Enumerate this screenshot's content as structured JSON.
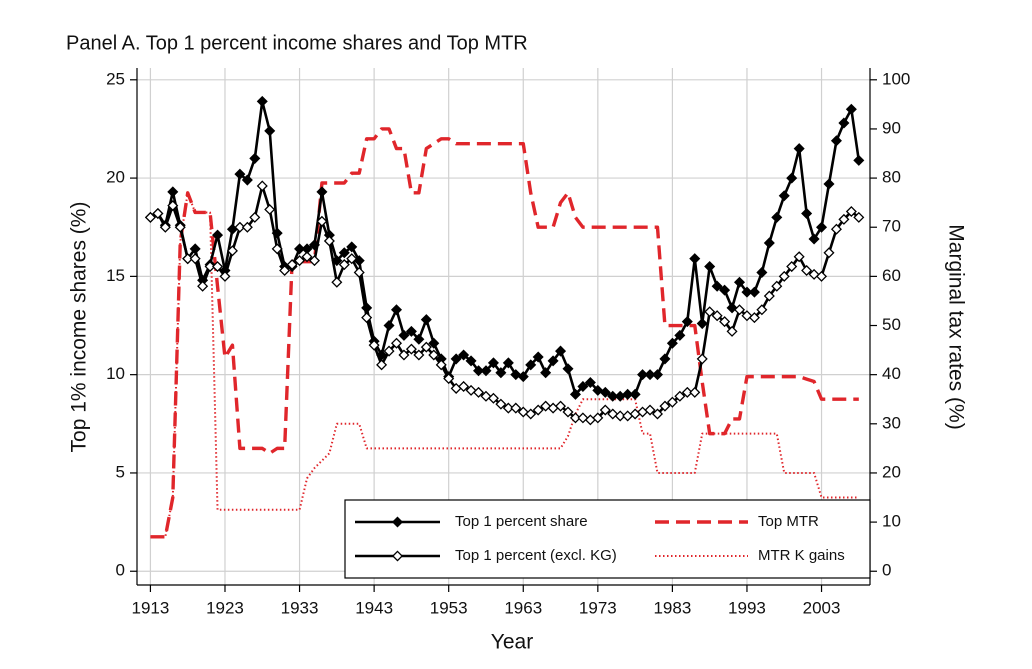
{
  "chart_data": {
    "type": "line",
    "title": "Panel A. Top 1 percent income shares and Top MTR",
    "xlabel": "Year",
    "ylabel": "Top 1% income shares (%)",
    "y2label": "Marginal tax rates (%)",
    "x": [
      1913,
      1914,
      1915,
      1916,
      1917,
      1918,
      1919,
      1920,
      1921,
      1922,
      1923,
      1924,
      1925,
      1926,
      1927,
      1928,
      1929,
      1930,
      1931,
      1932,
      1933,
      1934,
      1935,
      1936,
      1937,
      1938,
      1939,
      1940,
      1941,
      1942,
      1943,
      1944,
      1945,
      1946,
      1947,
      1948,
      1949,
      1950,
      1951,
      1952,
      1953,
      1954,
      1955,
      1956,
      1957,
      1958,
      1959,
      1960,
      1961,
      1962,
      1963,
      1964,
      1965,
      1966,
      1967,
      1968,
      1969,
      1970,
      1971,
      1972,
      1973,
      1974,
      1975,
      1976,
      1977,
      1978,
      1979,
      1980,
      1981,
      1982,
      1983,
      1984,
      1985,
      1986,
      1987,
      1988,
      1989,
      1990,
      1991,
      1992,
      1993,
      1994,
      1995,
      1996,
      1997,
      1998,
      1999,
      2000,
      2001,
      2002,
      2003,
      2004,
      2005,
      2006,
      2007,
      2008
    ],
    "series": [
      {
        "name": "Top 1 percent share",
        "color": "#000000",
        "dash": "solid",
        "marker": "diamond-filled",
        "axis": "y",
        "values": [
          18.0,
          18.2,
          17.6,
          19.3,
          17.6,
          15.9,
          16.4,
          14.8,
          15.6,
          17.1,
          15.3,
          17.4,
          20.2,
          19.9,
          21.0,
          23.9,
          22.4,
          17.2,
          15.5,
          15.5,
          16.4,
          16.4,
          16.6,
          19.3,
          17.1,
          15.8,
          16.2,
          16.5,
          15.8,
          13.4,
          11.7,
          11.0,
          12.5,
          13.3,
          12.0,
          12.2,
          11.8,
          12.8,
          11.6,
          10.8,
          9.9,
          10.8,
          11.0,
          10.7,
          10.2,
          10.2,
          10.6,
          10.1,
          10.6,
          10.0,
          9.9,
          10.5,
          10.9,
          10.1,
          10.7,
          11.2,
          10.3,
          9.0,
          9.4,
          9.6,
          9.2,
          9.1,
          8.9,
          8.9,
          9.0,
          9.0,
          10.0,
          10.0,
          10.0,
          10.8,
          11.6,
          12.0,
          12.7,
          15.9,
          12.6,
          15.5,
          14.5,
          14.3,
          13.4,
          14.7,
          14.2,
          14.2,
          15.2,
          16.7,
          18.0,
          19.1,
          20.0,
          21.5,
          18.2,
          16.9,
          17.5,
          19.7,
          21.9,
          22.8,
          23.5,
          20.9
        ]
      },
      {
        "name": "Top 1 percent (excl. KG)",
        "color": "#000000",
        "dash": "solid",
        "marker": "diamond-open",
        "axis": "y",
        "values": [
          18.0,
          18.2,
          17.5,
          18.6,
          17.5,
          15.9,
          15.9,
          14.5,
          15.5,
          15.5,
          15.0,
          16.3,
          17.5,
          17.5,
          18.0,
          19.6,
          18.4,
          16.4,
          15.3,
          15.6,
          15.8,
          16.0,
          15.8,
          17.8,
          16.8,
          14.7,
          15.6,
          15.9,
          15.2,
          12.9,
          11.5,
          10.5,
          11.2,
          11.6,
          11.0,
          11.3,
          11.0,
          11.4,
          11.0,
          10.5,
          9.8,
          9.3,
          9.4,
          9.2,
          9.1,
          8.9,
          8.8,
          8.5,
          8.3,
          8.3,
          8.1,
          8.0,
          8.2,
          8.4,
          8.3,
          8.4,
          8.1,
          7.8,
          7.8,
          7.7,
          7.8,
          8.2,
          8.0,
          7.9,
          7.9,
          8.0,
          8.1,
          8.2,
          8.0,
          8.4,
          8.6,
          8.9,
          9.1,
          9.1,
          10.8,
          13.2,
          13.0,
          12.7,
          12.2,
          13.3,
          13.0,
          12.9,
          13.3,
          14.0,
          14.5,
          15.0,
          15.5,
          16.0,
          15.3,
          15.1,
          15.0,
          16.2,
          17.4,
          17.9,
          18.3,
          18.0
        ]
      },
      {
        "name": "Top MTR",
        "color": "#e0262b",
        "dash": "dashed",
        "marker": null,
        "axis": "y2",
        "values": [
          7,
          7,
          7,
          15,
          67,
          77,
          73,
          73,
          73,
          58,
          43.5,
          46,
          25,
          25,
          25,
          25,
          24,
          25,
          25,
          63,
          63,
          63,
          63,
          79,
          79,
          79,
          79,
          81,
          81,
          88,
          88,
          90,
          90,
          86,
          86,
          77,
          77,
          86,
          87,
          88,
          88,
          87,
          87,
          87,
          87,
          87,
          87,
          87,
          87,
          87,
          87,
          77,
          70,
          70,
          70,
          75,
          77,
          72,
          70,
          70,
          70,
          70,
          70,
          70,
          70,
          70,
          70,
          70,
          70,
          50,
          50,
          50,
          50,
          50,
          38.5,
          28,
          28,
          28,
          31,
          31,
          39.6,
          39.6,
          39.6,
          39.6,
          39.6,
          39.6,
          39.6,
          39.6,
          39.1,
          38.6,
          35,
          35,
          35,
          35,
          35,
          35
        ]
      },
      {
        "name": "MTR K gains",
        "color": "#e0262b",
        "dash": "dotted",
        "marker": null,
        "axis": "y2",
        "values": [
          7,
          7,
          7,
          15,
          67,
          77,
          73,
          73,
          73,
          12.5,
          12.5,
          12.5,
          12.5,
          12.5,
          12.5,
          12.5,
          12.5,
          12.5,
          12.5,
          12.5,
          12.5,
          18.9,
          21,
          22.5,
          24,
          30,
          30,
          30,
          30,
          25,
          25,
          25,
          25,
          25,
          25,
          25,
          25,
          25,
          25,
          25,
          25,
          25,
          25,
          25,
          25,
          25,
          25,
          25,
          25,
          25,
          25,
          25,
          25,
          25,
          25,
          25,
          27.5,
          32,
          35,
          35,
          35,
          35,
          35,
          35,
          35,
          35,
          28,
          28,
          20,
          20,
          20,
          20,
          20,
          20,
          28,
          28,
          28,
          28,
          28,
          28,
          28,
          28,
          28,
          28,
          28,
          20,
          20,
          20,
          20,
          20,
          15,
          15,
          15,
          15,
          15,
          15
        ]
      }
    ],
    "xlim": [
      1911.2,
      2009.5
    ],
    "xticks": [
      1913,
      1923,
      1933,
      1943,
      1953,
      1963,
      1973,
      1983,
      1993,
      2003
    ],
    "ylim": [
      -0.7,
      25.6
    ],
    "yticks": [
      0,
      5,
      10,
      15,
      20,
      25
    ],
    "y2lim": [
      -2.8,
      102.4
    ],
    "y2ticks": [
      0,
      10,
      20,
      30,
      40,
      50,
      60,
      70,
      80,
      90,
      100
    ],
    "grid": true,
    "legend": "lower right"
  }
}
